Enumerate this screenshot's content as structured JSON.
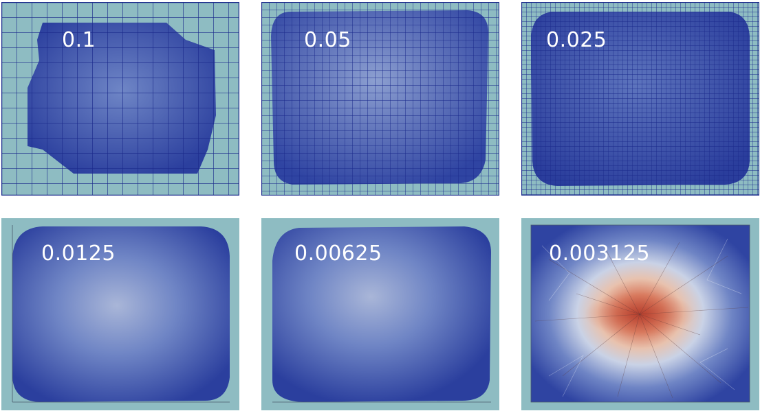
{
  "panels": [
    {
      "label": "0.1",
      "mesh": "coarse"
    },
    {
      "label": "0.05",
      "mesh": "medium"
    },
    {
      "label": "0.025",
      "mesh": "fine"
    },
    {
      "label": "0.0125",
      "mesh": "none"
    },
    {
      "label": "0.00625",
      "mesh": "none"
    },
    {
      "label": "0.003125",
      "mesh": "none"
    }
  ],
  "colors": {
    "background": "#8ebcc2",
    "mesh_line": "#1b2a8c",
    "field_dark": "#2b3f9e",
    "field_light": "#a6b5d8",
    "field_hot": "#c8553a"
  }
}
